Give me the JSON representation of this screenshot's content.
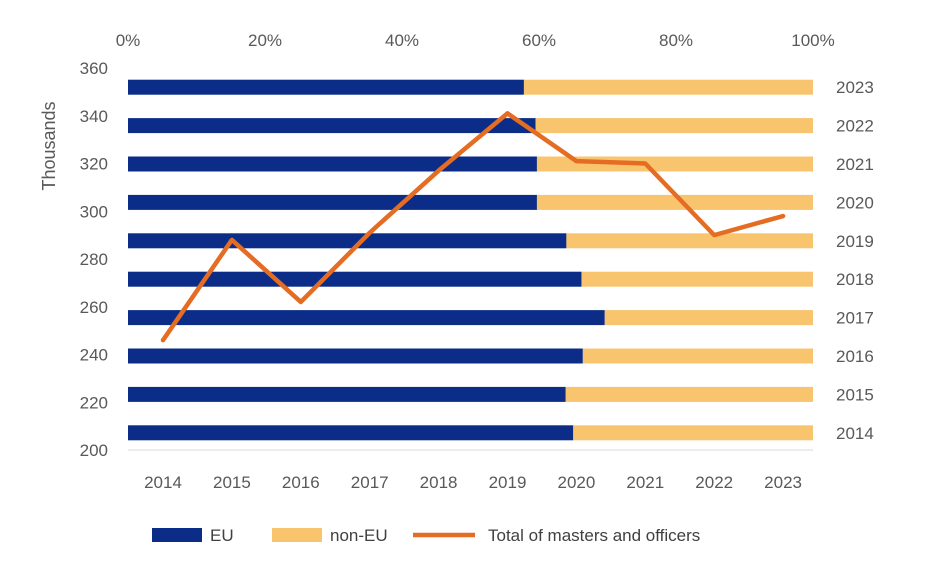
{
  "chart_data": {
    "type": "bar+line",
    "colors": {
      "eu": "#0b2d87",
      "non_eu": "#f9c46e",
      "total": "#e46c23",
      "axis_text": "#595959"
    },
    "bars": {
      "orientation": "horizontal",
      "stacked": "100%",
      "years": [
        "2023",
        "2022",
        "2021",
        "2020",
        "2019",
        "2018",
        "2017",
        "2016",
        "2015",
        "2014"
      ],
      "eu_percent": [
        57.8,
        59.5,
        59.7,
        59.7,
        64.0,
        66.2,
        69.6,
        66.4,
        63.9,
        65.0
      ],
      "top_axis_ticks": [
        "0%",
        "20%",
        "40%",
        "60%",
        "80%",
        "100%"
      ],
      "xlim": [
        0,
        100
      ]
    },
    "line": {
      "name": "Total of masters and officers",
      "x": [
        "2014",
        "2015",
        "2016",
        "2017",
        "2018",
        "2019",
        "2020",
        "2021",
        "2022",
        "2023"
      ],
      "values": [
        246,
        288,
        262,
        291,
        317,
        341,
        321,
        320,
        290,
        298
      ]
    },
    "y_axis": {
      "label": "Thousands",
      "ticks": [
        "360",
        "340",
        "320",
        "300",
        "280",
        "260",
        "240",
        "220",
        "200"
      ],
      "ylim": [
        200,
        360
      ]
    },
    "legend": {
      "position": "bottom",
      "items": [
        {
          "key": "eu",
          "label": "EU"
        },
        {
          "key": "non_eu",
          "label": "non-EU"
        },
        {
          "key": "total",
          "label": "Total of masters and officers"
        }
      ]
    }
  }
}
